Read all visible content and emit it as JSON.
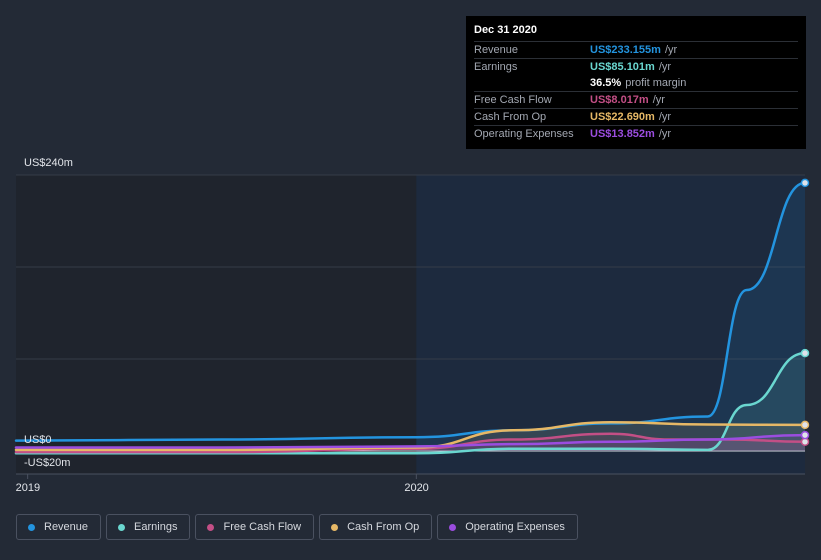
{
  "tooltip": {
    "date": "Dec 31 2020",
    "rows": [
      {
        "label": "Revenue",
        "value": "US$233.155m",
        "unit": "/yr",
        "color": "#2394df"
      },
      {
        "label": "Earnings",
        "value": "US$85.101m",
        "unit": "/yr",
        "color": "#6ad7d0"
      },
      {
        "label": "",
        "value": "36.5%",
        "unit": "profit margin",
        "color": "#ffffff"
      },
      {
        "label": "Free Cash Flow",
        "value": "US$8.017m",
        "unit": "/yr",
        "color": "#c34f86"
      },
      {
        "label": "Cash From Op",
        "value": "US$22.690m",
        "unit": "/yr",
        "color": "#e6b866"
      },
      {
        "label": "Operating Expenses",
        "value": "US$13.852m",
        "unit": "/yr",
        "color": "#9b4de0"
      }
    ]
  },
  "legend": [
    {
      "label": "Revenue",
      "color": "#2394df"
    },
    {
      "label": "Earnings",
      "color": "#6ad7d0"
    },
    {
      "label": "Free Cash Flow",
      "color": "#c34f86"
    },
    {
      "label": "Cash From Op",
      "color": "#e6b866"
    },
    {
      "label": "Operating Expenses",
      "color": "#9b4de0"
    }
  ],
  "chart_data": {
    "type": "line",
    "y_tick_labels": [
      "US$240m",
      "US$0",
      "-US$20m"
    ],
    "x_tick_labels": [
      "2019",
      "2020"
    ],
    "ylim": [
      -20,
      240
    ],
    "xlim": [
      2018.97,
      2021.0
    ],
    "grid": true,
    "highlighted_range": [
      2020.0,
      2021.0
    ],
    "series": [
      {
        "name": "Revenue",
        "color": "#2394df",
        "x": [
          2018.97,
          2019.5,
          2020.0,
          2020.25,
          2020.5,
          2020.75,
          2020.85,
          2021.0
        ],
        "y": [
          9,
          10,
          12,
          18,
          24,
          30,
          140,
          233.155
        ]
      },
      {
        "name": "Earnings",
        "color": "#6ad7d0",
        "x": [
          2018.97,
          2019.5,
          2020.0,
          2020.25,
          2020.5,
          2020.75,
          2020.85,
          2021.0
        ],
        "y": [
          -2,
          -2,
          -2,
          2,
          2,
          1,
          40,
          85.101
        ]
      },
      {
        "name": "Free Cash Flow",
        "color": "#c34f86",
        "x": [
          2018.97,
          2019.5,
          2020.0,
          2020.25,
          2020.5,
          2020.65,
          2020.8,
          2021.0
        ],
        "y": [
          -1,
          -1,
          2,
          10,
          15,
          10,
          10,
          8.017
        ]
      },
      {
        "name": "Cash From Op",
        "color": "#e6b866",
        "x": [
          2018.97,
          2019.5,
          2020.0,
          2020.25,
          2020.5,
          2020.75,
          2021.0
        ],
        "y": [
          1,
          1,
          3,
          18,
          25,
          23,
          22.69
        ]
      },
      {
        "name": "Operating Expenses",
        "color": "#9b4de0",
        "x": [
          2018.97,
          2019.5,
          2020.0,
          2020.25,
          2020.5,
          2020.75,
          2021.0
        ],
        "y": [
          3,
          3,
          4,
          6,
          8,
          10,
          13.852
        ]
      }
    ]
  }
}
